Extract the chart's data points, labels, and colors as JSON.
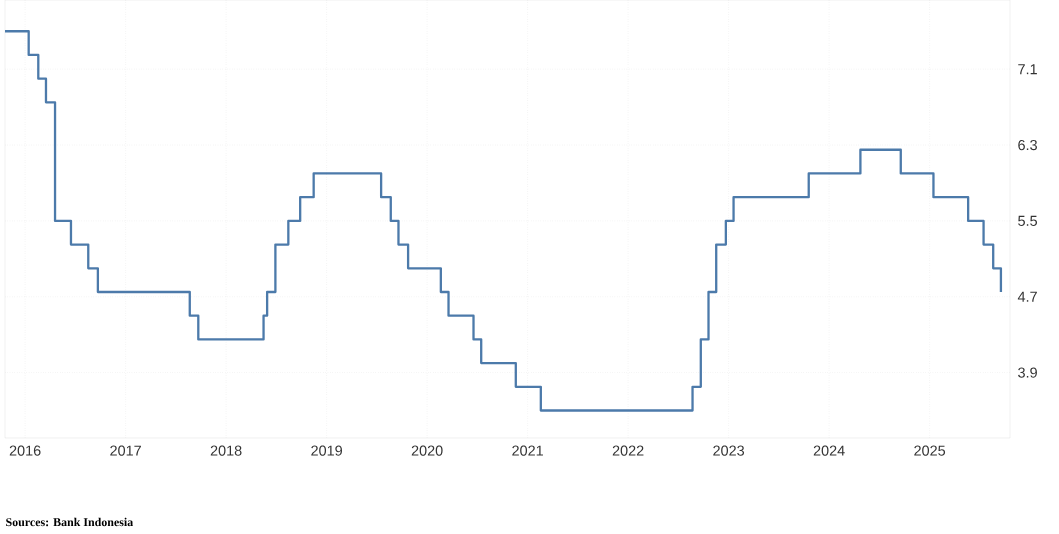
{
  "chart_data": {
    "type": "step",
    "color": "#4c7aaa",
    "line_style": "solid",
    "marker": "none",
    "grid": true,
    "x": [
      "2015-10-20",
      "2016-01-14",
      "2016-02-18",
      "2016-03-17",
      "2016-04-19",
      "2016-06-16",
      "2016-08-18",
      "2016-09-22",
      "2017-08-22",
      "2017-09-22",
      "2018-05-17",
      "2018-05-30",
      "2018-06-29",
      "2018-08-15",
      "2018-09-27",
      "2018-11-15",
      "2019-07-18",
      "2019-08-22",
      "2019-09-19",
      "2019-10-24",
      "2020-02-20",
      "2020-03-19",
      "2020-06-18",
      "2020-07-16",
      "2020-11-19",
      "2021-02-18",
      "2022-08-23",
      "2022-09-22",
      "2022-10-20",
      "2022-11-17",
      "2022-12-22",
      "2023-01-19",
      "2023-10-19",
      "2024-04-24",
      "2024-09-18",
      "2025-01-15",
      "2025-05-21",
      "2025-07-16",
      "2025-08-20",
      "2025-09-17"
    ],
    "values": [
      7.5,
      7.25,
      7.0,
      6.75,
      5.5,
      5.25,
      5.0,
      4.75,
      4.5,
      4.25,
      4.5,
      4.75,
      5.25,
      5.5,
      5.75,
      6.0,
      5.75,
      5.5,
      5.25,
      5.0,
      4.75,
      4.5,
      4.25,
      4.0,
      3.75,
      3.5,
      3.75,
      4.25,
      4.75,
      5.25,
      5.5,
      5.75,
      6.0,
      6.25,
      6.0,
      5.75,
      5.5,
      5.25,
      5.0,
      4.75
    ],
    "xlim": [
      "2015-10-20",
      "2025-10-20"
    ],
    "xticks": [
      "2016",
      "2017",
      "2018",
      "2019",
      "2020",
      "2021",
      "2022",
      "2023",
      "2024",
      "2025"
    ],
    "ylim": [
      3.21,
      7.83
    ],
    "yticks": [
      3.9,
      4.7,
      5.5,
      6.3,
      7.1
    ],
    "annotations": [
      "Sources: Bank Indonesia"
    ]
  }
}
